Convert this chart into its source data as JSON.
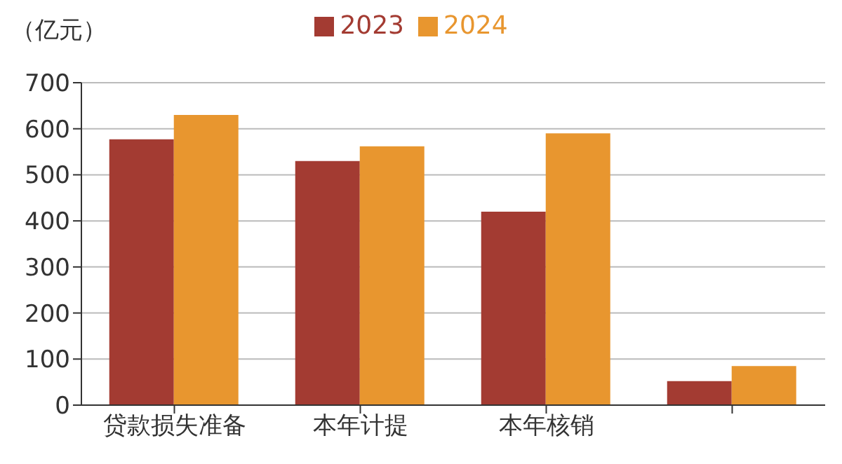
{
  "chart_data": {
    "type": "bar",
    "ylabel": "（亿元）",
    "categories": [
      "贷款损失准备",
      "本年计提",
      "本年核销",
      null
    ],
    "series": [
      {
        "name": "2023",
        "color": "#a33b32",
        "values": [
          577,
          530,
          420,
          52
        ]
      },
      {
        "name": "2024",
        "color": "#e8962f",
        "values": [
          630,
          562,
          590,
          85
        ]
      }
    ],
    "ylim": [
      0,
      700
    ],
    "yticks": [
      0,
      100,
      200,
      300,
      400,
      500,
      600,
      700
    ],
    "grid": "y",
    "legend": "top"
  }
}
